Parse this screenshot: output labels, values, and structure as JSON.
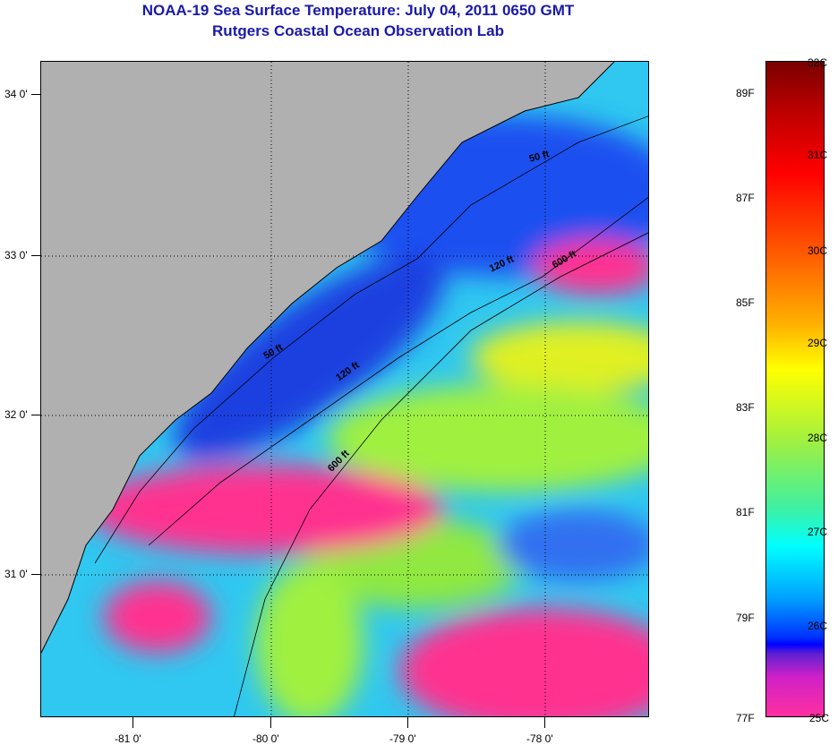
{
  "title": {
    "line1": "NOAA-19 Sea Surface Temperature:  July 04, 2011 0650 GMT",
    "line2": "Rutgers Coastal Ocean Observation Lab"
  },
  "map": {
    "lon_ticks": [
      "-81 0'",
      "-80 0'",
      "-79 0'",
      "-78 0'"
    ],
    "lat_ticks": [
      "34 0'",
      "33 0'",
      "32 0'",
      "31 0'"
    ],
    "contours": [
      "50 ft",
      "120 ft",
      "600 ft",
      "50 ft",
      "120 ft",
      "600 ft"
    ],
    "colors": {
      "land": "#b0b0b0",
      "cloud": "#ff3090",
      "missing": "#ffffff"
    }
  },
  "colorbar": {
    "fahrenheit": [
      "89F",
      "87F",
      "85F",
      "83F",
      "81F",
      "79F",
      "77F"
    ],
    "celsius": [
      "32C",
      "31C",
      "30C",
      "29C",
      "28C",
      "27C",
      "26C",
      "25C"
    ],
    "range_c": [
      25,
      32
    ]
  }
}
